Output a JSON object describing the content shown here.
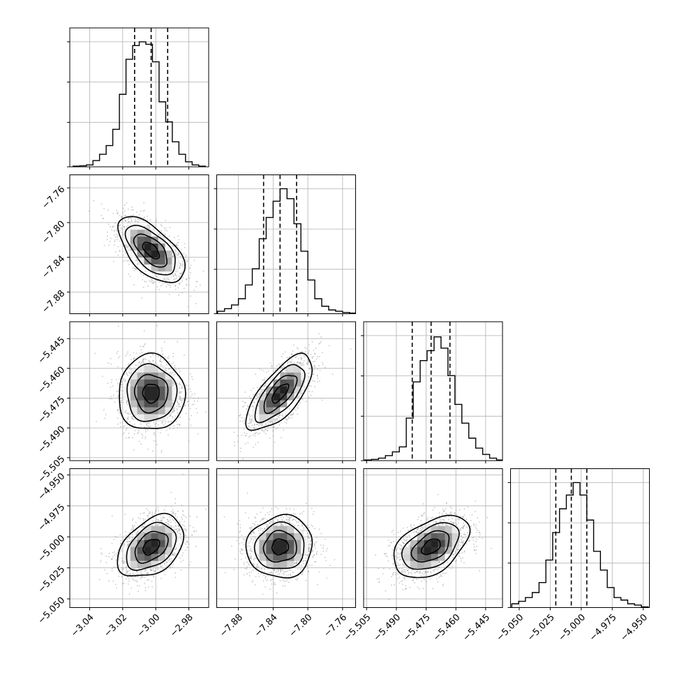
{
  "chart_data": {
    "type": "corner",
    "parameters": [
      {
        "name": "",
        "range": [
          -3.052,
          -2.968
        ],
        "ticks": [
          -3.04,
          -3.02,
          -3.0,
          -2.98
        ],
        "tick_labels": [
          "−3.04",
          "−3.02",
          "−3.00",
          "−2.98"
        ],
        "quantiles": [
          -3.0128,
          -3.0028,
          -2.9928
        ],
        "hist": {
          "edges": [
            -3.05,
            -3.046,
            -3.042,
            -3.038,
            -3.034,
            -3.03,
            -3.026,
            -3.022,
            -3.018,
            -3.014,
            -3.01,
            -3.006,
            -3.002,
            -2.998,
            -2.994,
            -2.99,
            -2.986,
            -2.982,
            -2.978,
            -2.974,
            -2.97
          ],
          "counts": [
            0.005,
            0.008,
            0.015,
            0.05,
            0.1,
            0.17,
            0.3,
            0.58,
            0.86,
            0.97,
            1.0,
            0.98,
            0.84,
            0.52,
            0.36,
            0.2,
            0.1,
            0.04,
            0.015,
            0.005
          ]
        }
      },
      {
        "name": "",
        "range": [
          -7.905,
          -7.745
        ],
        "ticks": [
          -7.88,
          -7.84,
          -7.8,
          -7.76
        ],
        "tick_labels": [
          "−7.88",
          "−7.84",
          "−7.80",
          "−7.76"
        ],
        "quantiles": [
          -7.851,
          -7.832,
          -7.813
        ],
        "hist": {
          "edges": [
            -7.904,
            -7.896,
            -7.888,
            -7.88,
            -7.872,
            -7.864,
            -7.856,
            -7.848,
            -7.84,
            -7.832,
            -7.824,
            -7.816,
            -7.808,
            -7.8,
            -7.792,
            -7.784,
            -7.776,
            -7.768,
            -7.76,
            -7.752,
            -7.744
          ],
          "counts": [
            0.02,
            0.04,
            0.07,
            0.12,
            0.23,
            0.36,
            0.6,
            0.77,
            0.9,
            1.0,
            0.92,
            0.72,
            0.5,
            0.27,
            0.12,
            0.06,
            0.03,
            0.02,
            0.01,
            0.005
          ]
        }
      },
      {
        "name": "",
        "range": [
          -5.5065,
          -5.4365
        ],
        "ticks": [
          -5.505,
          -5.49,
          -5.475,
          -5.46,
          -5.445
        ],
        "tick_labels": [
          "−5.505",
          "−5.490",
          "−5.475",
          "−5.460",
          "−5.445"
        ],
        "quantiles": [
          -5.482,
          -5.4725,
          -5.463
        ],
        "hist": {
          "edges": [
            -5.506,
            -5.5025,
            -5.499,
            -5.4955,
            -5.492,
            -5.4885,
            -5.485,
            -5.4815,
            -5.478,
            -5.4745,
            -5.471,
            -5.4675,
            -5.464,
            -5.4605,
            -5.457,
            -5.4535,
            -5.45,
            -5.4465,
            -5.443,
            -5.4395,
            -5.436
          ],
          "counts": [
            0.005,
            0.01,
            0.02,
            0.04,
            0.07,
            0.11,
            0.34,
            0.63,
            0.8,
            0.88,
            0.99,
            0.9,
            0.68,
            0.45,
            0.3,
            0.18,
            0.1,
            0.05,
            0.02,
            0.005
          ]
        }
      },
      {
        "name": "",
        "range": [
          -5.057,
          -4.945
        ],
        "ticks": [
          -5.05,
          -5.025,
          -5.0,
          -4.975,
          -4.95
        ],
        "tick_labels": [
          "−5.050",
          "−5.025",
          "−5.000",
          "−4.975",
          "−4.950"
        ],
        "quantiles": [
          -5.0205,
          -5.008,
          -4.9955
        ],
        "hist": {
          "edges": [
            -5.056,
            -5.0505,
            -5.045,
            -5.0395,
            -5.034,
            -5.0285,
            -5.023,
            -5.0175,
            -5.012,
            -5.0065,
            -5.001,
            -4.9955,
            -4.99,
            -4.9845,
            -4.979,
            -4.9735,
            -4.968,
            -4.9625,
            -4.957,
            -4.9515,
            -4.946
          ],
          "counts": [
            0.03,
            0.05,
            0.08,
            0.12,
            0.2,
            0.38,
            0.6,
            0.79,
            0.9,
            1.0,
            0.9,
            0.7,
            0.45,
            0.3,
            0.16,
            0.08,
            0.06,
            0.03,
            0.02,
            0.005
          ]
        }
      }
    ],
    "correlations": [
      [
        1.0,
        -0.6,
        0.0,
        0.4
      ],
      [
        -0.6,
        1.0,
        0.7,
        0.05
      ],
      [
        0.0,
        0.7,
        1.0,
        0.45
      ],
      [
        0.4,
        0.05,
        0.45,
        1.0
      ]
    ],
    "contour_levels_sigma": [
      0.5,
      1.0,
      1.5,
      2.0
    ],
    "grid": true,
    "line_color": "#000000",
    "scatter_color": "#9a9a9a"
  }
}
